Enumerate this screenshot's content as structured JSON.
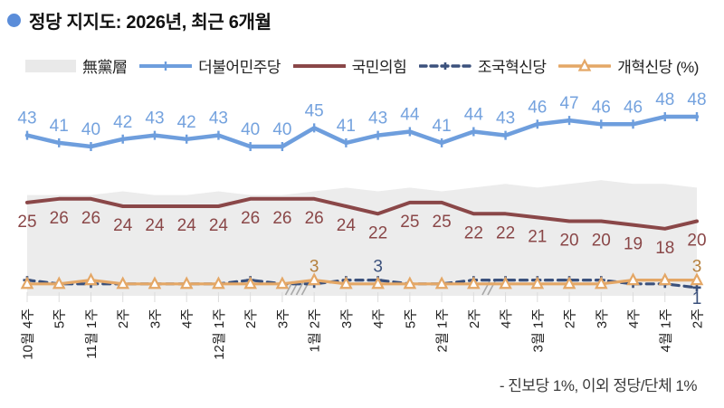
{
  "header": {
    "title": "정당 지지도: 2026년, 최근 6개월"
  },
  "legend": {
    "items": [
      {
        "label": "無黨層"
      },
      {
        "label": "더불어민주당"
      },
      {
        "label": "국민의힘"
      },
      {
        "label": "조국혁신당"
      },
      {
        "label": "개혁신당 (%)"
      }
    ]
  },
  "footnote": {
    "text": "- 진보당 1%, 이외 정당/단체 1%"
  },
  "chart_data": {
    "type": "line",
    "title": "정당 지지도: 2026년, 최근 6개월",
    "unit": "%",
    "ylim": [
      0,
      50
    ],
    "grid": false,
    "legend_position": "top",
    "categories": [
      "10월 4주",
      "5주",
      "11월 1주",
      "2주",
      "3주",
      "4주",
      "12월 1주",
      "2주",
      "3주",
      "1월 2주",
      "3주",
      "4주",
      "5주",
      "2월 1주",
      "2주",
      "4주",
      "3월 1주",
      "2주",
      "3주",
      "4주",
      "4월 1주",
      "2주"
    ],
    "axis_breaks": [
      {
        "after_index": 8,
        "slashes": 4
      },
      {
        "after_index": 14,
        "slashes": 2
      }
    ],
    "series": [
      {
        "key": "independents",
        "name": "無黨層",
        "type": "area",
        "color": "#ececec",
        "values_estimated": true,
        "values": [
          27,
          27,
          27,
          28,
          27,
          27,
          28,
          27,
          27,
          28,
          29,
          28,
          29,
          28,
          29,
          30,
          29,
          30,
          31,
          30,
          30,
          29
        ]
      },
      {
        "key": "democratic-party",
        "name": "더불어민주당",
        "type": "line",
        "color": "#6e9edd",
        "label_color": "#74a2de",
        "marker": "tick",
        "line_style": "solid",
        "value_labels": "all",
        "label_side": "above",
        "values": [
          43,
          41,
          40,
          42,
          43,
          42,
          43,
          40,
          40,
          45,
          41,
          43,
          44,
          41,
          44,
          43,
          46,
          47,
          46,
          46,
          48,
          48
        ]
      },
      {
        "key": "people-power-party",
        "name": "국민의힘",
        "type": "line",
        "color": "#8a4748",
        "label_color": "#8a4748",
        "marker": "none",
        "line_style": "solid",
        "value_labels": "all",
        "label_side": "below",
        "values": [
          25,
          26,
          26,
          24,
          24,
          24,
          24,
          26,
          26,
          26,
          24,
          22,
          25,
          25,
          22,
          22,
          21,
          20,
          20,
          19,
          18,
          20
        ]
      },
      {
        "key": "rebuilding-korea-party",
        "name": "조국혁신당",
        "type": "line",
        "color": "#3b517c",
        "label_color": "#3b517c",
        "marker": "plus",
        "line_style": "dashed",
        "value_labels": "some",
        "point_labels": [
          {
            "index": 11,
            "text": "3",
            "side": "above"
          },
          {
            "index": 21,
            "text": "1",
            "side": "below"
          }
        ],
        "values": [
          3,
          2,
          2,
          2,
          2,
          2,
          2,
          3,
          2,
          2,
          3,
          3,
          2,
          2,
          3,
          3,
          3,
          3,
          3,
          2,
          2,
          1
        ]
      },
      {
        "key": "reform-party",
        "name": "개혁신당",
        "type": "line",
        "color": "#e4a766",
        "label_color": "#b5803e",
        "marker": "triangle",
        "line_style": "solid",
        "value_labels": "some",
        "point_labels": [
          {
            "index": 9,
            "text": "3",
            "side": "above"
          },
          {
            "index": 21,
            "text": "3",
            "side": "above"
          }
        ],
        "values": [
          2,
          2,
          3,
          2,
          2,
          2,
          2,
          2,
          2,
          3,
          2,
          2,
          2,
          2,
          2,
          2,
          2,
          2,
          2,
          3,
          3,
          3
        ]
      }
    ],
    "footnote": "- 진보당 1%, 이외 정당/단체 1%"
  }
}
